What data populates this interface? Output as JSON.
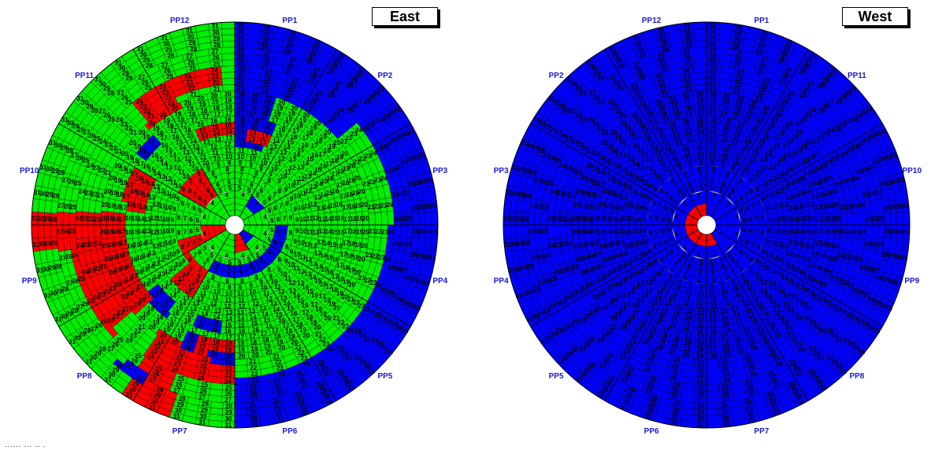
{
  "footer": "...... ... .. .",
  "colors": {
    "on": "#00ee00",
    "off": "#0000ff",
    "bad": "#ff0000",
    "line": "#000000",
    "pp_label": "#1a1ad6"
  },
  "rings": 31,
  "panels": [
    {
      "title": "East",
      "pp_labels": [
        "PP1",
        "PP2",
        "PP3",
        "PP4",
        "PP5",
        "PP6",
        "PP7",
        "PP8",
        "PP9",
        "PP10",
        "PP11",
        "PP12"
      ],
      "default_color": "off",
      "regions": [
        {
          "color": "on",
          "r": [
            1,
            31
          ],
          "a": [
            180,
            360
          ]
        },
        {
          "color": "on",
          "r": [
            1,
            11
          ],
          "a": [
            0,
            180
          ]
        },
        {
          "color": "on",
          "r": [
            12,
            23
          ],
          "a": [
            90,
            190
          ]
        },
        {
          "color": "on",
          "r": [
            12,
            24
          ],
          "a": [
            52,
            90
          ]
        },
        {
          "color": "on",
          "r": [
            12,
            20
          ],
          "a": [
            20,
            52
          ]
        },
        {
          "color": "off",
          "r": [
            6,
            7
          ],
          "a": [
            95,
            215
          ]
        },
        {
          "color": "bad",
          "r": [
            18,
            24
          ],
          "a": [
            180,
            200
          ]
        },
        {
          "color": "bad",
          "r": [
            20,
            31
          ],
          "a": [
            200,
            215
          ]
        },
        {
          "color": "bad",
          "r": [
            17,
            25
          ],
          "a": [
            252,
            275
          ]
        },
        {
          "color": "bad",
          "r": [
            26,
            31
          ],
          "a": [
            262,
            275
          ]
        },
        {
          "color": "bad",
          "r": [
            20,
            24
          ],
          "a": [
            318,
            335
          ]
        },
        {
          "color": "bad",
          "r": [
            22,
            24
          ],
          "a": [
            335,
            355
          ]
        },
        {
          "color": "bad",
          "r": [
            14,
            15
          ],
          "a": [
            338,
            358
          ]
        },
        {
          "color": "bad",
          "r": [
            13,
            14
          ],
          "a": [
            10,
            25
          ]
        },
        {
          "color": "bad",
          "r": [
            14,
            17
          ],
          "a": [
            280,
            300
          ]
        },
        {
          "color": "bad",
          "r": [
            17,
            25
          ],
          "a": [
            228,
            252
          ]
        },
        {
          "color": "bad",
          "r": [
            19,
            21
          ],
          "a": [
            178,
            185
          ]
        },
        {
          "color": "bad",
          "r": [
            8,
            12
          ],
          "a": [
            215,
            235
          ]
        },
        {
          "color": "bad",
          "r": [
            1,
            8
          ],
          "a": [
            240,
            260
          ]
        },
        {
          "color": "bad",
          "r": [
            5,
            9
          ],
          "a": [
            300,
            330
          ]
        },
        {
          "color": "bad",
          "r": [
            1,
            3
          ],
          "a": [
            160,
            175
          ]
        },
        {
          "color": "bad",
          "r": [
            2,
            4
          ],
          "a": [
            350,
            365
          ]
        },
        {
          "color": "off",
          "r": [
            3,
            4
          ],
          "a": [
            40,
            55
          ]
        },
        {
          "color": "off",
          "r": [
            1,
            2
          ],
          "a": [
            135,
            160
          ]
        },
        {
          "color": "off",
          "r": [
            18,
            20
          ],
          "a": [
            200,
            205
          ]
        },
        {
          "color": "off",
          "r": [
            17,
            18
          ],
          "a": [
            305,
            320
          ]
        },
        {
          "color": "off",
          "r": [
            27,
            28
          ],
          "a": [
            210,
            220
          ]
        },
        {
          "color": "off",
          "r": [
            15,
            16
          ],
          "a": [
            190,
            200
          ]
        },
        {
          "color": "off",
          "r": [
            15,
            17
          ],
          "a": [
            218,
            230
          ]
        },
        {
          "color": "off",
          "r": [
            20,
            21
          ],
          "a": [
            182,
            190
          ]
        }
      ]
    },
    {
      "title": "West",
      "pp_labels": [
        "PP1",
        "PP11",
        "PP10",
        "PP9",
        "PP8",
        "PP7",
        "PP6",
        "PP5",
        "PP4",
        "PP3",
        "PP2",
        "PP12"
      ],
      "default_color": "off",
      "regions": [
        {
          "color": "bad",
          "r": [
            1,
            2
          ],
          "a": [
            160,
            360
          ]
        }
      ]
    }
  ]
}
